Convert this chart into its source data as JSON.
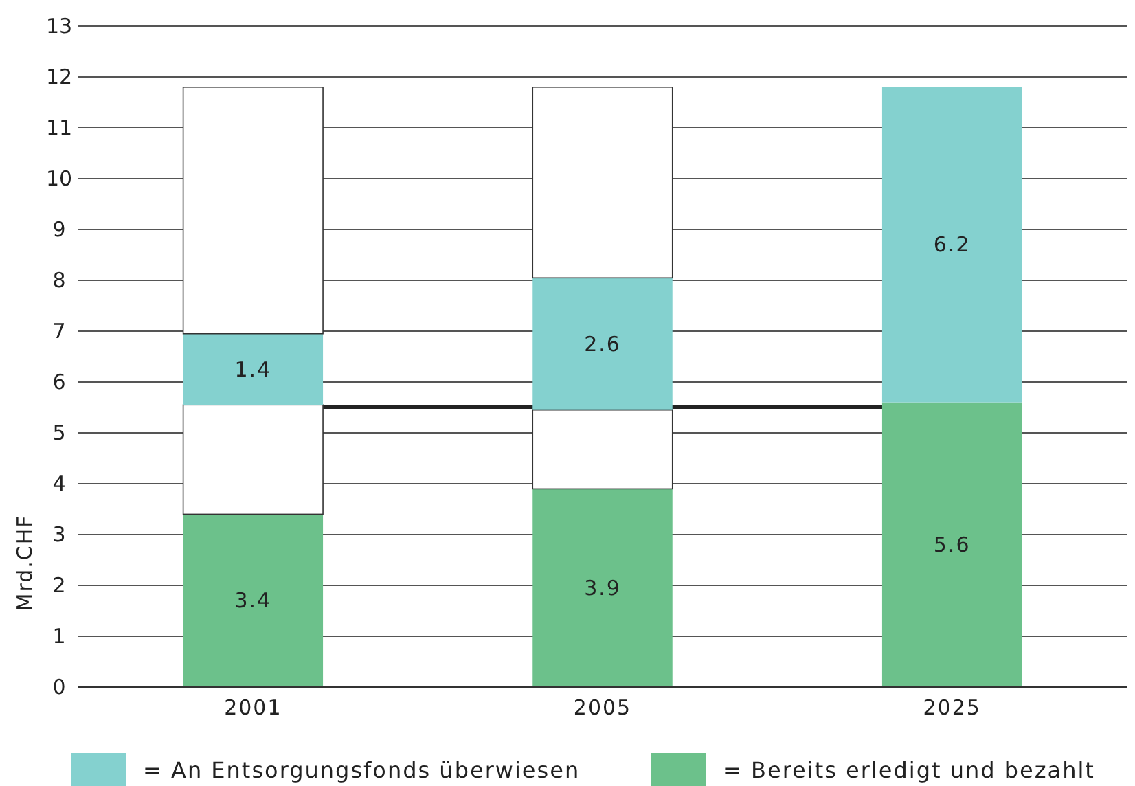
{
  "chart_data": {
    "type": "bar",
    "stacked": true,
    "ylabel": "Mrd.CHF",
    "categories": [
      "2001",
      "2005",
      "2025"
    ],
    "ylim": [
      0,
      13
    ],
    "yticks": [
      0,
      1,
      2,
      3,
      4,
      5,
      6,
      7,
      8,
      9,
      10,
      11,
      12,
      13
    ],
    "grid": "y",
    "legend": "bottom",
    "series": [
      {
        "name": "= Bereits erledigt und bezahlt",
        "color": "#6cc18b",
        "values": [
          3.4,
          3.9,
          5.6
        ],
        "value_labels": [
          "3.4",
          "3.9",
          "5.6"
        ]
      },
      {
        "color": "#ffffff",
        "values": [
          2.15,
          1.55,
          0
        ]
      },
      {
        "name": "= An Entsorgungsfonds überwiesen",
        "color": "#84d1cf",
        "values": [
          1.4,
          2.6,
          6.2
        ],
        "value_labels": [
          "1.4",
          "2.6",
          "6.2"
        ]
      },
      {
        "color": "#ffffff",
        "values": [
          4.85,
          3.75,
          0
        ]
      }
    ],
    "ref_lines": [
      {
        "axis": "y",
        "value": 5.5,
        "color": "#222222"
      }
    ]
  }
}
